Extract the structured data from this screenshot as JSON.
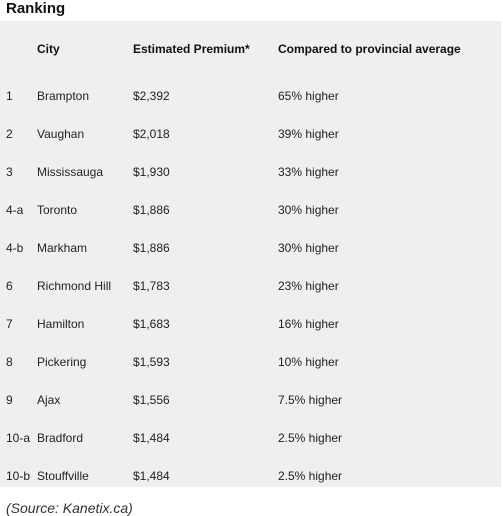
{
  "heading": "Ranking",
  "table": {
    "headers": {
      "rank": "",
      "city": "City",
      "premium": "Estimated Premium*",
      "comparison": "Compared to provincial average"
    },
    "rows": [
      {
        "rank": "1",
        "city": "Brampton",
        "premium": "$2,392",
        "comparison": "65% higher"
      },
      {
        "rank": "2",
        "city": "Vaughan",
        "premium": "$2,018",
        "comparison": "39% higher"
      },
      {
        "rank": "3",
        "city": "Mississauga",
        "premium": "$1,930",
        "comparison": "33% higher"
      },
      {
        "rank": "4-a",
        "city": "Toronto",
        "premium": "$1,886",
        "comparison": "30% higher"
      },
      {
        "rank": "4-b",
        "city": "Markham",
        "premium": "$1,886",
        "comparison": "30% higher"
      },
      {
        "rank": "6",
        "city": "Richmond Hill",
        "premium": "$1,783",
        "comparison": "23% higher"
      },
      {
        "rank": "7",
        "city": "Hamilton",
        "premium": "$1,683",
        "comparison": "16% higher"
      },
      {
        "rank": "8",
        "city": "Pickering",
        "premium": "$1,593",
        "comparison": "10% higher"
      },
      {
        "rank": "9",
        "city": "Ajax",
        "premium": "$1,556",
        "comparison": "7.5% higher"
      },
      {
        "rank": "10-a",
        "city": "Bradford",
        "premium": "$1,484",
        "comparison": "2.5% higher"
      },
      {
        "rank": "10-b",
        "city": "Stouffville",
        "premium": "$1,484",
        "comparison": "2.5% higher"
      }
    ]
  },
  "source": "(Source: Kanetix.ca)"
}
